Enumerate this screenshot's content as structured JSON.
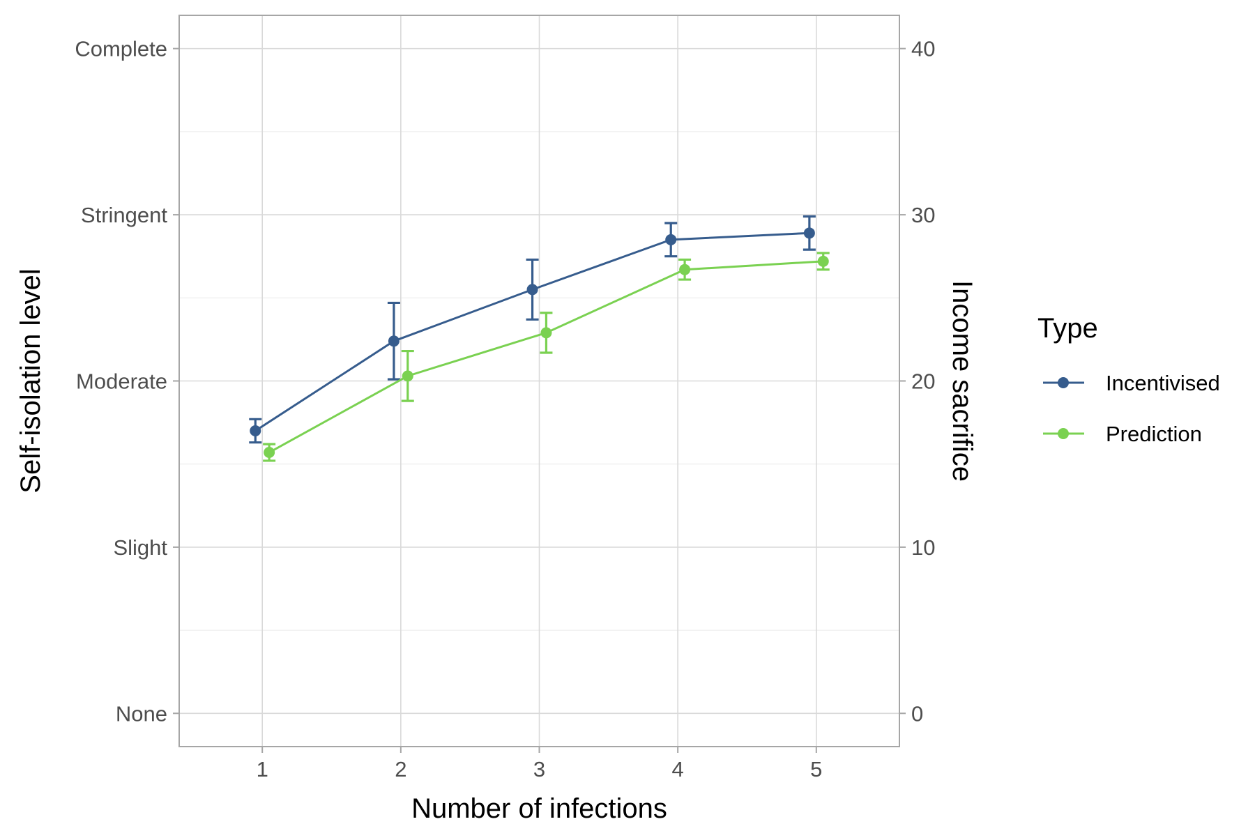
{
  "chart_data": {
    "type": "line",
    "xlabel": "Number of infections",
    "ylabel": "Self-isolation level",
    "y2label": "Income sacrifice",
    "x_ticks": [
      1,
      2,
      3,
      4,
      5
    ],
    "xlim": [
      0.4,
      5.6
    ],
    "y_ticks": [
      0,
      10,
      20,
      30,
      40
    ],
    "y_tick_labels": [
      "None",
      "Slight",
      "Moderate",
      "Stringent",
      "Complete"
    ],
    "y2_ticks": [
      0,
      10,
      20,
      30,
      40
    ],
    "y2_tick_labels": [
      "0",
      "10",
      "20",
      "30",
      "40"
    ],
    "ylim": [
      -2,
      42
    ],
    "grid": true,
    "legend": {
      "title": "Type",
      "position": "right"
    },
    "series": [
      {
        "name": "Incentivised",
        "color": "#365c8d",
        "x": [
          1,
          2,
          3,
          4,
          5
        ],
        "values": [
          17.0,
          22.4,
          25.5,
          28.5,
          28.9
        ],
        "lower": [
          16.3,
          20.1,
          23.7,
          27.5,
          27.9
        ],
        "upper": [
          17.7,
          24.7,
          27.3,
          29.5,
          29.9
        ]
      },
      {
        "name": "Prediction",
        "color": "#7ad151",
        "x": [
          1,
          2,
          3,
          4,
          5
        ],
        "values": [
          15.7,
          20.3,
          22.9,
          26.7,
          27.2
        ],
        "lower": [
          15.2,
          18.8,
          21.7,
          26.1,
          26.7
        ],
        "upper": [
          16.2,
          21.8,
          24.1,
          27.3,
          27.7
        ]
      }
    ]
  }
}
